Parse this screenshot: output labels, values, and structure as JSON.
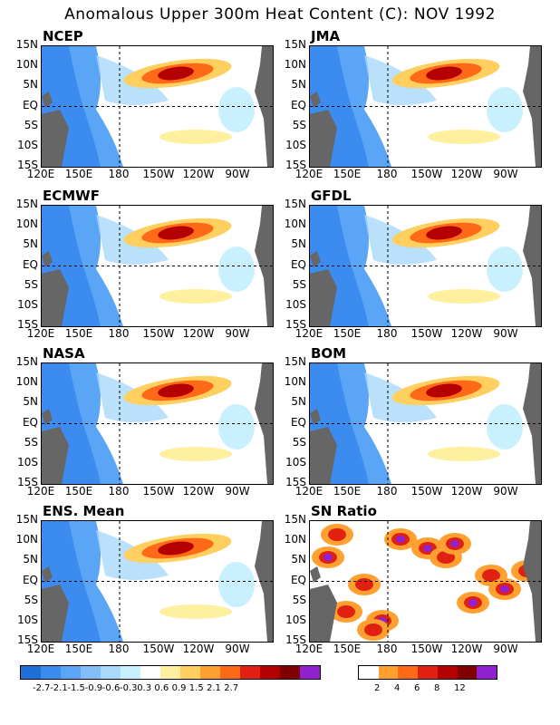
{
  "title": "Anomalous Upper 300m Heat Content (C): NOV 1992",
  "panels": [
    {
      "name": "NCEP"
    },
    {
      "name": "JMA"
    },
    {
      "name": "ECMWF"
    },
    {
      "name": "GFDL"
    },
    {
      "name": "NASA"
    },
    {
      "name": "BOM"
    },
    {
      "name": "ENS. Mean"
    },
    {
      "name": "SN Ratio"
    }
  ],
  "yticks": [
    "15N",
    "10N",
    "5N",
    "EQ",
    "5S",
    "10S",
    "15S"
  ],
  "xticks": [
    "120E",
    "150E",
    "180",
    "150W",
    "120W",
    "90W"
  ],
  "anomaly_colorbar": {
    "colors": [
      "#1e6fd9",
      "#3c8cf0",
      "#5aa5f5",
      "#82bff8",
      "#a9d8fb",
      "#c8f0ff",
      "#ffffff",
      "#fff0a0",
      "#ffd060",
      "#ffa030",
      "#ff6a18",
      "#e02010",
      "#b40000",
      "#800000",
      "#9020d0"
    ],
    "labels": [
      "-2.7",
      "-2.1",
      "-1.5",
      "-0.9",
      "-0.6",
      "-0.3",
      "0.3",
      "0.6",
      "0.9",
      "1.5",
      "2.1",
      "2.7"
    ]
  },
  "sn_colorbar": {
    "colors": [
      "#ffffff",
      "#ffa030",
      "#ff6a18",
      "#e02010",
      "#b40000",
      "#800000",
      "#9020d0"
    ],
    "labels": [
      "2",
      "4",
      "6",
      "8",
      "12"
    ]
  },
  "land_color": "#666666"
}
